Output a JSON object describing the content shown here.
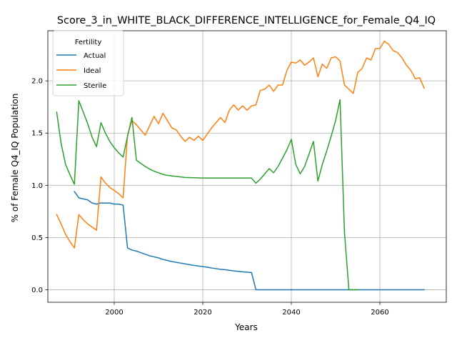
{
  "chart_data": {
    "type": "line",
    "title": "Score_3_in_WHITE_BLACK_DIFFERENCE_INTELLIGENCE_for_Female_Q4_IQ",
    "xlabel": "Years",
    "ylabel": "% of Female Q4_IQ Population",
    "xlim": [
      1985,
      2075
    ],
    "ylim": [
      -0.12,
      2.48
    ],
    "x_ticks": [
      2000,
      2020,
      2040,
      2060
    ],
    "x_tick_labels": [
      "2000",
      "2020",
      "2040",
      "2060"
    ],
    "y_ticks": [
      0.0,
      0.5,
      1.0,
      1.5,
      2.0
    ],
    "y_tick_labels": [
      "0.0",
      "0.5",
      "1.0",
      "1.5",
      "2.0"
    ],
    "grid": true,
    "legend": {
      "title": "Fertility",
      "placement": "top-left"
    },
    "series": [
      {
        "name": "Actual",
        "color": "#1f77b4",
        "x": [
          1991,
          1992,
          1994,
          1995,
          1996,
          1997,
          1998,
          1999,
          2000,
          2001,
          2002,
          2003,
          2004,
          2005,
          2006,
          2007,
          2008,
          2009,
          2010,
          2011,
          2012,
          2013,
          2014,
          2015,
          2016,
          2017,
          2018,
          2019,
          2020,
          2021,
          2022,
          2023,
          2024,
          2025,
          2026,
          2027,
          2028,
          2029,
          2030,
          2031,
          2032,
          2035,
          2040,
          2045,
          2050,
          2055,
          2060,
          2065,
          2070
        ],
        "y": [
          0.94,
          0.88,
          0.86,
          0.83,
          0.82,
          0.83,
          0.83,
          0.83,
          0.82,
          0.82,
          0.81,
          0.4,
          0.38,
          0.37,
          0.355,
          0.34,
          0.325,
          0.315,
          0.305,
          0.29,
          0.28,
          0.27,
          0.262,
          0.255,
          0.248,
          0.24,
          0.233,
          0.227,
          0.222,
          0.215,
          0.208,
          0.202,
          0.196,
          0.192,
          0.186,
          0.18,
          0.176,
          0.172,
          0.168,
          0.165,
          0.0,
          0.0,
          0.0,
          0.0,
          0.0,
          0.0,
          0.0,
          0.0,
          0.0
        ]
      },
      {
        "name": "Ideal",
        "color": "#ff7f0e",
        "x": [
          1987,
          1988,
          1989,
          1990,
          1991,
          1992,
          1993,
          1994,
          1995,
          1996,
          1997,
          1998,
          1999,
          2000,
          2001,
          2002,
          2003,
          2004,
          2005,
          2006,
          2007,
          2008,
          2009,
          2010,
          2011,
          2012,
          2013,
          2014,
          2015,
          2016,
          2017,
          2018,
          2019,
          2020,
          2021,
          2022,
          2023,
          2024,
          2025,
          2026,
          2027,
          2028,
          2029,
          2030,
          2031,
          2032,
          2033,
          2034,
          2035,
          2036,
          2037,
          2038,
          2039,
          2040,
          2041,
          2042,
          2043,
          2044,
          2045,
          2046,
          2047,
          2048,
          2049,
          2050,
          2051,
          2052,
          2053,
          2054,
          2055,
          2056,
          2057,
          2058,
          2059,
          2060,
          2061,
          2062,
          2063,
          2064,
          2065,
          2066,
          2067,
          2068,
          2069,
          2070
        ],
        "y": [
          0.72,
          0.63,
          0.53,
          0.46,
          0.4,
          0.72,
          0.67,
          0.63,
          0.6,
          0.57,
          1.08,
          1.02,
          0.98,
          0.95,
          0.92,
          0.88,
          1.48,
          1.62,
          1.58,
          1.53,
          1.48,
          1.57,
          1.66,
          1.59,
          1.69,
          1.62,
          1.55,
          1.53,
          1.47,
          1.42,
          1.46,
          1.43,
          1.47,
          1.43,
          1.49,
          1.55,
          1.6,
          1.65,
          1.6,
          1.72,
          1.77,
          1.72,
          1.76,
          1.72,
          1.76,
          1.77,
          1.91,
          1.92,
          1.96,
          1.9,
          1.96,
          1.96,
          2.1,
          2.18,
          2.17,
          2.2,
          2.15,
          2.18,
          2.22,
          2.04,
          2.16,
          2.12,
          2.22,
          2.23,
          2.19,
          1.96,
          1.92,
          1.88,
          2.08,
          2.12,
          2.22,
          2.2,
          2.31,
          2.31,
          2.38,
          2.35,
          2.29,
          2.27,
          2.22,
          2.15,
          2.1,
          2.02,
          2.03,
          1.93
        ]
      },
      {
        "name": "Sterile",
        "color": "#2ca02c",
        "x": [
          1987,
          1988,
          1989,
          1990,
          1991,
          1992,
          1993,
          1994,
          1995,
          1996,
          1997,
          1998,
          1999,
          2000,
          2001,
          2002,
          2003,
          2004,
          2005,
          2006,
          2007,
          2008,
          2009,
          2010,
          2011,
          2012,
          2013,
          2014,
          2015,
          2016,
          2018,
          2020,
          2025,
          2030,
          2031,
          2032,
          2033,
          2034,
          2035,
          2036,
          2037,
          2038,
          2039,
          2040,
          2041,
          2042,
          2043,
          2044,
          2045,
          2046,
          2047,
          2048,
          2049,
          2050,
          2051,
          2052,
          2053,
          2054,
          2055
        ],
        "y": [
          1.7,
          1.4,
          1.2,
          1.1,
          1.01,
          1.81,
          1.7,
          1.59,
          1.46,
          1.37,
          1.6,
          1.5,
          1.42,
          1.36,
          1.31,
          1.27,
          1.47,
          1.65,
          1.24,
          1.21,
          1.18,
          1.155,
          1.135,
          1.12,
          1.105,
          1.095,
          1.09,
          1.085,
          1.08,
          1.075,
          1.072,
          1.07,
          1.07,
          1.07,
          1.07,
          1.02,
          1.06,
          1.11,
          1.16,
          1.12,
          1.18,
          1.26,
          1.34,
          1.44,
          1.2,
          1.11,
          1.18,
          1.3,
          1.42,
          1.04,
          1.2,
          1.33,
          1.47,
          1.62,
          1.82,
          0.55,
          0.0,
          0.0,
          0.0
        ]
      }
    ]
  }
}
